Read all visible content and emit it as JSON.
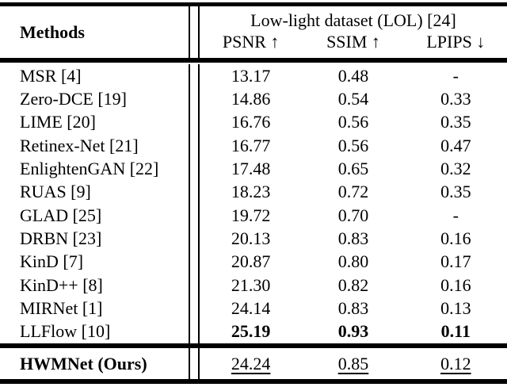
{
  "table": {
    "methods_header": "Methods",
    "group_header": "Low-light dataset (LOL) [24]",
    "columns": [
      "PSNR ↑",
      "SSIM ↑",
      "LPIPS ↓"
    ],
    "rows": [
      {
        "method": "MSR [4]",
        "psnr": "13.17",
        "ssim": "0.48",
        "lpips": "-"
      },
      {
        "method": "Zero-DCE [19]",
        "psnr": "14.86",
        "ssim": "0.54",
        "lpips": "0.33"
      },
      {
        "method": "LIME [20]",
        "psnr": "16.76",
        "ssim": "0.56",
        "lpips": "0.35"
      },
      {
        "method": "Retinex-Net [21]",
        "psnr": "16.77",
        "ssim": "0.56",
        "lpips": "0.47"
      },
      {
        "method": "EnlightenGAN [22]",
        "psnr": "17.48",
        "ssim": "0.65",
        "lpips": "0.32"
      },
      {
        "method": "RUAS [9]",
        "psnr": "18.23",
        "ssim": "0.72",
        "lpips": "0.35"
      },
      {
        "method": "GLAD [25]",
        "psnr": "19.72",
        "ssim": "0.70",
        "lpips": "-"
      },
      {
        "method": "DRBN [23]",
        "psnr": "20.13",
        "ssim": "0.83",
        "lpips": "0.16"
      },
      {
        "method": "KinD [7]",
        "psnr": "20.87",
        "ssim": "0.80",
        "lpips": "0.17"
      },
      {
        "method": "KinD++ [8]",
        "psnr": "21.30",
        "ssim": "0.82",
        "lpips": "0.16"
      },
      {
        "method": "MIRNet [1]",
        "psnr": "24.14",
        "ssim": "0.83",
        "lpips": "0.13"
      },
      {
        "method": "LLFlow [10]",
        "psnr": "25.19",
        "ssim": "0.93",
        "lpips": "0.11"
      }
    ],
    "footer": {
      "method": "HWMNet (Ours)",
      "psnr": "24.24",
      "ssim": "0.85",
      "lpips": "0.12"
    },
    "text_color": "#000000",
    "background_color": "#ffffff"
  }
}
